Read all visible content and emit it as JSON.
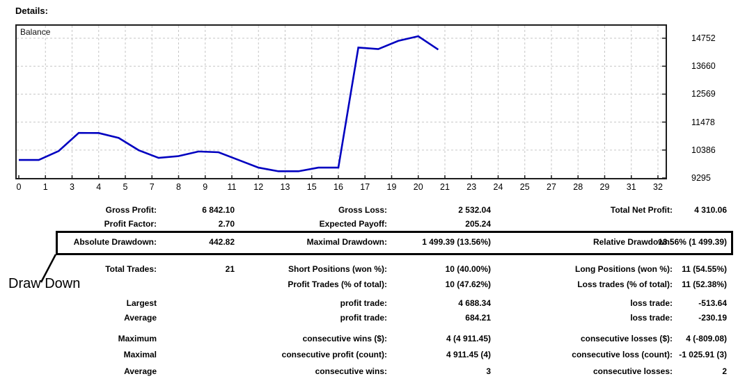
{
  "header": {
    "title": "Details:"
  },
  "chart_data": {
    "type": "line",
    "title": "Balance",
    "series": [
      {
        "name": "Balance",
        "x": [
          0,
          1,
          2,
          3,
          4,
          5,
          6,
          7,
          8,
          9,
          10,
          11,
          12,
          13,
          14,
          15,
          16,
          17,
          18,
          19,
          20,
          21
        ],
        "values": [
          10000,
          10000,
          10350,
          11056,
          11050,
          10860,
          10380,
          10080,
          10150,
          10330,
          10300,
          10000,
          9700,
          9557,
          9557,
          9700,
          9700,
          14388,
          14330,
          14650,
          14830,
          14310
        ]
      }
    ],
    "x_tick_labels": [
      "0",
      "1",
      "3",
      "4",
      "5",
      "7",
      "8",
      "9",
      "11",
      "12",
      "13",
      "15",
      "16",
      "17",
      "19",
      "20",
      "21",
      "23",
      "24",
      "25",
      "27",
      "28",
      "29",
      "31",
      "32"
    ],
    "y_tick_values": [
      14752,
      13660,
      12569,
      11478,
      10386,
      9295
    ],
    "xlim": [
      0,
      32
    ],
    "ylim": [
      9295,
      15290
    ],
    "grid": "dashed",
    "line_color": "#0000C0",
    "grid_color": "#c6c6c6",
    "border_color": "#1c1c1c"
  },
  "annotation": {
    "label": "Draw Down"
  },
  "stats": {
    "rows": [
      {
        "boxed": false,
        "cells": [
          {
            "label": "Gross Profit:",
            "value": "6 842.10"
          },
          {
            "label": "Gross Loss:",
            "value": "2 532.04"
          },
          {
            "label": "Total Net Profit:",
            "value": "4 310.06"
          }
        ]
      },
      {
        "boxed": false,
        "cells": [
          {
            "label": "Profit Factor:",
            "value": "2.70"
          },
          {
            "label": "Expected Payoff:",
            "value": "205.24"
          },
          {
            "label": "",
            "value": ""
          }
        ]
      },
      {
        "boxed": true,
        "cells": [
          {
            "label": "Absolute Drawdown:",
            "value": "442.82"
          },
          {
            "label": "Maximal Drawdown:",
            "value": "1 499.39 (13.56%)"
          },
          {
            "label": "Relative Drawdown:",
            "value": "13.56% (1 499.39)"
          }
        ]
      },
      {
        "boxed": false,
        "cells": [
          {
            "label": "Total Trades:",
            "value": "21"
          },
          {
            "label": "Short Positions (won %):",
            "value": "10 (40.00%)"
          },
          {
            "label": "Long Positions (won %):",
            "value": "11 (54.55%)"
          }
        ]
      },
      {
        "boxed": false,
        "cells": [
          {
            "label": "",
            "value": ""
          },
          {
            "label": "Profit Trades (% of total):",
            "value": "10 (47.62%)"
          },
          {
            "label": "Loss trades (% of total):",
            "value": "11 (52.38%)"
          }
        ]
      },
      {
        "boxed": false,
        "cells": [
          {
            "label": "Largest",
            "value": ""
          },
          {
            "label": "profit trade:",
            "value": "4 688.34"
          },
          {
            "label": "loss trade:",
            "value": "-513.64"
          }
        ]
      },
      {
        "boxed": false,
        "cells": [
          {
            "label": "Average",
            "value": ""
          },
          {
            "label": "profit trade:",
            "value": "684.21"
          },
          {
            "label": "loss trade:",
            "value": "-230.19"
          }
        ]
      },
      {
        "boxed": false,
        "cells": [
          {
            "label": "Maximum",
            "value": ""
          },
          {
            "label": "consecutive wins ($):",
            "value": "4 (4 911.45)"
          },
          {
            "label": "consecutive losses ($):",
            "value": "4 (-809.08)"
          }
        ]
      },
      {
        "boxed": false,
        "cells": [
          {
            "label": "Maximal",
            "value": ""
          },
          {
            "label": "consecutive profit (count):",
            "value": "4 911.45 (4)"
          },
          {
            "label": "consecutive loss (count):",
            "value": "-1 025.91 (3)"
          }
        ]
      },
      {
        "boxed": false,
        "cells": [
          {
            "label": "Average",
            "value": ""
          },
          {
            "label": "consecutive wins:",
            "value": "3"
          },
          {
            "label": "consecutive losses:",
            "value": "2"
          }
        ]
      }
    ]
  }
}
